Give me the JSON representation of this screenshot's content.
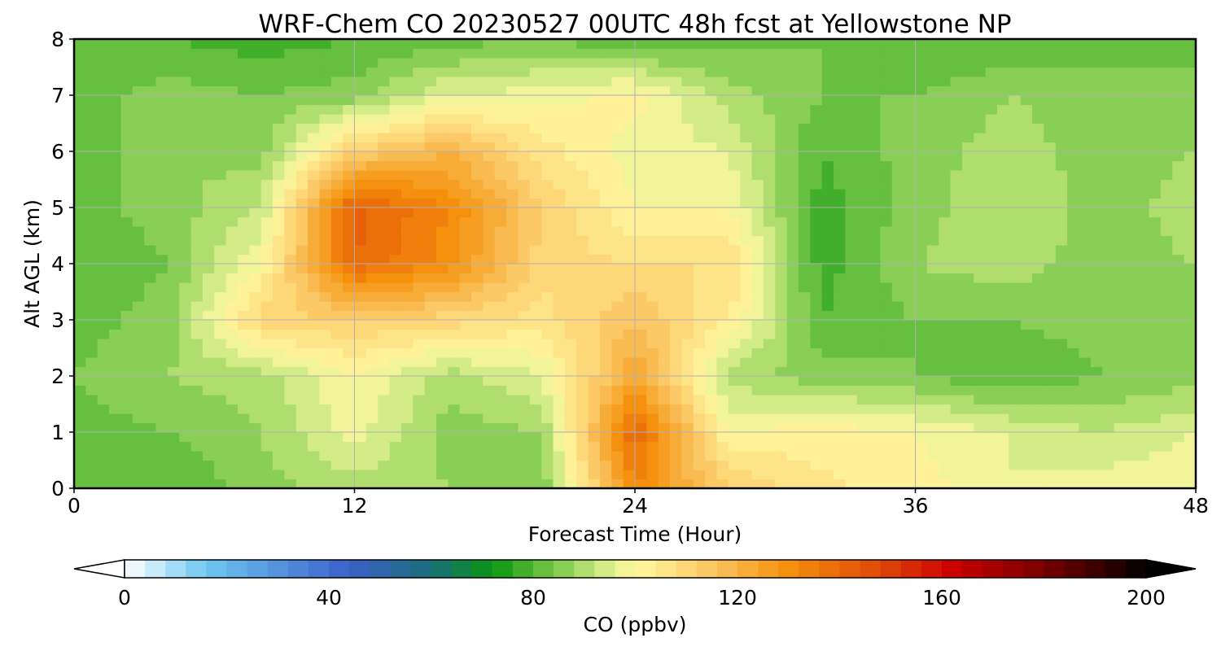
{
  "chart_data": {
    "type": "heatmap",
    "title": "WRF-Chem CO  20230527 00UTC 48h fcst at Yellowstone NP",
    "xlabel": "Forecast Time (Hour)",
    "ylabel": "Alt AGL (km)",
    "xlim": [
      0,
      48
    ],
    "ylim": [
      0,
      8
    ],
    "x_ticks": [
      0,
      12,
      24,
      36,
      48
    ],
    "y_ticks": [
      0,
      1,
      2,
      3,
      4,
      5,
      6,
      7,
      8
    ],
    "grid": true,
    "x_hours": [
      0,
      4,
      8,
      12,
      16,
      20,
      24,
      28,
      32,
      36,
      40,
      44,
      48
    ],
    "y_km": [
      0,
      1,
      2,
      3,
      4,
      5,
      6,
      7,
      8
    ],
    "z": [
      [
        82,
        80,
        86,
        90,
        88,
        84,
        132,
        112,
        105,
        102,
        96,
        98,
        100
      ],
      [
        82,
        84,
        88,
        98,
        86,
        88,
        140,
        100,
        102,
        100,
        96,
        92,
        96
      ],
      [
        84,
        88,
        90,
        100,
        90,
        96,
        124,
        90,
        86,
        84,
        80,
        84,
        86
      ],
      [
        82,
        86,
        110,
        112,
        110,
        106,
        116,
        104,
        80,
        84,
        84,
        86,
        88
      ],
      [
        80,
        84,
        100,
        140,
        130,
        110,
        108,
        108,
        78,
        88,
        90,
        86,
        88
      ],
      [
        82,
        86,
        92,
        142,
        132,
        112,
        100,
        100,
        78,
        86,
        92,
        86,
        90
      ],
      [
        80,
        88,
        86,
        112,
        120,
        106,
        98,
        96,
        80,
        86,
        90,
        86,
        88
      ],
      [
        82,
        86,
        84,
        86,
        96,
        98,
        102,
        90,
        84,
        84,
        88,
        86,
        86
      ],
      [
        80,
        80,
        78,
        80,
        82,
        84,
        80,
        82,
        84,
        80,
        80,
        82,
        82
      ]
    ],
    "colorbar": {
      "label": "CO  (ppbv)",
      "min": 0,
      "max": 200,
      "ticks": [
        0,
        40,
        80,
        120,
        160,
        200
      ],
      "extend": "both",
      "color_stops": [
        {
          "v": 0,
          "c": "#ffffff"
        },
        {
          "v": 16,
          "c": "#6ec6f2"
        },
        {
          "v": 44,
          "c": "#3a60c8"
        },
        {
          "v": 60,
          "c": "#1a6e7a"
        },
        {
          "v": 72,
          "c": "#0a9410"
        },
        {
          "v": 84,
          "c": "#78c848"
        },
        {
          "v": 94,
          "c": "#d4ec88"
        },
        {
          "v": 100,
          "c": "#fff8a0"
        },
        {
          "v": 112,
          "c": "#fcd070"
        },
        {
          "v": 130,
          "c": "#f4900c"
        },
        {
          "v": 148,
          "c": "#e04808"
        },
        {
          "v": 162,
          "c": "#cc0000"
        },
        {
          "v": 180,
          "c": "#780000"
        },
        {
          "v": 200,
          "c": "#000000"
        }
      ]
    }
  }
}
